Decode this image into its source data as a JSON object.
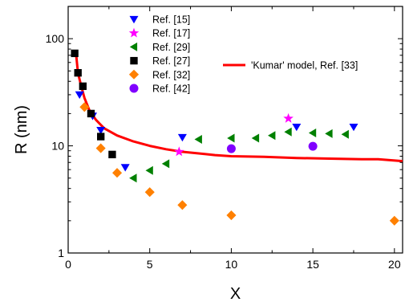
{
  "chart_data": {
    "type": "scatter",
    "title": "",
    "xlabel": "X",
    "ylabel": "R (nm)",
    "xlim": [
      0,
      20.5
    ],
    "ylim": [
      1,
      200
    ],
    "yscale": "log",
    "xticks": [
      0,
      5,
      10,
      15,
      20
    ],
    "yticks": [
      1,
      10,
      100
    ],
    "grid": false,
    "legend_placement": "top",
    "series": [
      {
        "name": "Ref. [15]",
        "marker": "triangle-down",
        "color": "#0000ff",
        "points": [
          [
            0.7,
            30
          ],
          [
            1.5,
            19
          ],
          [
            2.0,
            14
          ],
          [
            3.5,
            6.3
          ],
          [
            7.0,
            12
          ],
          [
            14.0,
            15
          ],
          [
            17.5,
            15
          ]
        ]
      },
      {
        "name": "Ref. [17]",
        "marker": "star",
        "color": "#ff00ff",
        "points": [
          [
            6.8,
            8.8
          ],
          [
            13.5,
            18
          ]
        ]
      },
      {
        "name": "Ref. [29]",
        "marker": "triangle-left",
        "color": "#008000",
        "points": [
          [
            4.0,
            5.0
          ],
          [
            5.0,
            5.9
          ],
          [
            6.0,
            6.8
          ],
          [
            8.0,
            11.5
          ],
          [
            10.0,
            11.8
          ],
          [
            11.5,
            11.8
          ],
          [
            12.5,
            12.5
          ],
          [
            13.5,
            13.5
          ],
          [
            15.0,
            13.2
          ],
          [
            16.0,
            13.0
          ],
          [
            17.0,
            12.8
          ]
        ]
      },
      {
        "name": "Ref. [27]",
        "marker": "square",
        "color": "#000000",
        "points": [
          [
            0.4,
            73
          ],
          [
            0.6,
            48
          ],
          [
            0.9,
            36
          ],
          [
            1.4,
            20
          ],
          [
            2.0,
            12.2
          ],
          [
            2.7,
            8.3
          ]
        ]
      },
      {
        "name": "Ref. [32]",
        "marker": "diamond",
        "color": "#ff8000",
        "points": [
          [
            1.0,
            23
          ],
          [
            2.0,
            9.5
          ],
          [
            3.0,
            5.6
          ],
          [
            5.0,
            3.7
          ],
          [
            7.0,
            2.8
          ],
          [
            10.0,
            2.25
          ],
          [
            20.0,
            2.0
          ]
        ]
      },
      {
        "name": "Ref. [42]",
        "marker": "circle",
        "color": "#8000ff",
        "points": [
          [
            10.0,
            9.4
          ],
          [
            15.0,
            9.9
          ]
        ]
      },
      {
        "name": "'Kumar' model, Ref. [33]",
        "marker": "line",
        "color": "#ff0000",
        "points": [
          [
            0.5,
            68
          ],
          [
            0.6,
            48
          ],
          [
            0.8,
            36
          ],
          [
            1.0,
            28
          ],
          [
            1.3,
            21.5
          ],
          [
            1.7,
            17.5
          ],
          [
            2.2,
            14.6
          ],
          [
            3.0,
            12.5
          ],
          [
            4.0,
            11.0
          ],
          [
            5.0,
            10.0
          ],
          [
            6.0,
            9.3
          ],
          [
            7.0,
            8.8
          ],
          [
            8.0,
            8.5
          ],
          [
            9.0,
            8.2
          ],
          [
            10.0,
            8.0
          ],
          [
            12.0,
            7.9
          ],
          [
            14.0,
            7.7
          ],
          [
            16.0,
            7.6
          ],
          [
            18.0,
            7.5
          ],
          [
            19.0,
            7.5
          ],
          [
            20.5,
            7.2
          ]
        ]
      }
    ]
  }
}
